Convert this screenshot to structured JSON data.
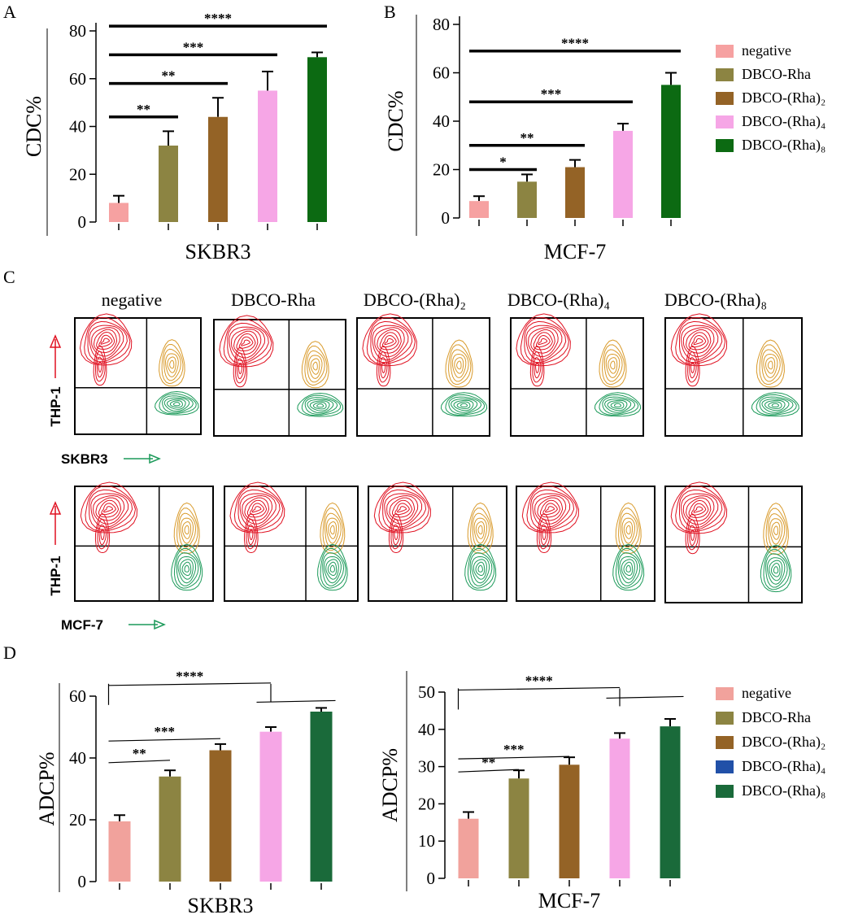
{
  "panels": {
    "A": "A",
    "B": "B",
    "C": "C",
    "D": "D"
  },
  "colors": {
    "negative": "#f6a1a1",
    "negative_d": "#f1a29c",
    "rha1": "#8c8442",
    "rha2": "#946326",
    "rha4": "#f6a6e6",
    "rha4_legend_d": "#2150a8",
    "rha8": "#0c6a12",
    "rha8_d": "#1a6a3a",
    "flow_red": "#e01020",
    "flow_orange": "#d99a2a",
    "flow_green": "#1c9a5a"
  },
  "legend_top": {
    "items": [
      "negative",
      "DBCO-Rha",
      "DBCO-(Rha)₂",
      "DBCO-(Rha)₄",
      "DBCO-(Rha)₈"
    ],
    "color_keys": [
      "negative",
      "rha1",
      "rha2",
      "rha4",
      "rha8"
    ]
  },
  "legend_bottom": {
    "items": [
      "negative",
      "DBCO-Rha",
      "DBCO-(Rha)₂",
      "DBCO-(Rha)₄",
      "DBCO-(Rha)₈"
    ],
    "color_keys": [
      "negative_d",
      "rha1",
      "rha2",
      "rha4_legend_d",
      "rha8_d"
    ]
  },
  "chart_data": [
    {
      "id": "A",
      "type": "bar",
      "xlabel": "SKBR3",
      "ylabel": "CDC%",
      "ylim": [
        0,
        80
      ],
      "yticks": [
        0,
        20,
        40,
        60,
        80
      ],
      "categories": [
        "negative",
        "DBCO-Rha",
        "DBCO-(Rha)₂",
        "DBCO-(Rha)₄",
        "DBCO-(Rha)₈"
      ],
      "values": [
        8,
        32,
        44,
        55,
        69
      ],
      "errors": [
        3,
        6,
        8,
        8,
        2
      ],
      "color_keys": [
        "negative",
        "rha1",
        "rha2",
        "rha4",
        "rha8"
      ],
      "significance": [
        {
          "from": 0,
          "to": 1,
          "label": "**",
          "y": 44
        },
        {
          "from": 0,
          "to": 2,
          "label": "**",
          "y": 58
        },
        {
          "from": 0,
          "to": 3,
          "label": "***",
          "y": 70
        },
        {
          "from": 0,
          "to": 4,
          "label": "****",
          "y": 82
        }
      ]
    },
    {
      "id": "B",
      "type": "bar",
      "xlabel": "MCF-7",
      "ylabel": "CDC%",
      "ylim": [
        0,
        80
      ],
      "yticks": [
        0,
        20,
        40,
        60,
        80
      ],
      "categories": [
        "negative",
        "DBCO-Rha",
        "DBCO-(Rha)₂",
        "DBCO-(Rha)₄",
        "DBCO-(Rha)₈"
      ],
      "values": [
        7,
        15,
        21,
        36,
        55
      ],
      "errors": [
        2,
        3,
        3,
        3,
        5
      ],
      "color_keys": [
        "negative",
        "rha1",
        "rha2",
        "rha4",
        "rha8"
      ],
      "significance": [
        {
          "from": 0,
          "to": 1,
          "label": "*",
          "y": 20
        },
        {
          "from": 0,
          "to": 2,
          "label": "**",
          "y": 30
        },
        {
          "from": 0,
          "to": 3,
          "label": "***",
          "y": 48
        },
        {
          "from": 0,
          "to": 4,
          "label": "****",
          "y": 69
        }
      ]
    },
    {
      "id": "D1",
      "type": "bar",
      "xlabel": "SKBR3",
      "ylabel": "ADCP%",
      "ylim": [
        0,
        60
      ],
      "yticks": [
        0,
        20,
        40,
        60
      ],
      "categories": [
        "negative",
        "DBCO-Rha",
        "DBCO-(Rha)₂",
        "DBCO-(Rha)₄",
        "DBCO-(Rha)₈"
      ],
      "values": [
        19.5,
        34,
        42.5,
        48.5,
        55
      ],
      "errors": [
        2,
        2,
        2,
        1.5,
        1.2
      ],
      "color_keys": [
        "negative_d",
        "rha1",
        "rha2",
        "rha4",
        "rha8_d"
      ],
      "significance": [
        {
          "from": 0,
          "to": 1,
          "label": "**",
          "y": 39
        },
        {
          "from": 0,
          "to": 2,
          "label": "***",
          "y": 46
        },
        {
          "from": 0,
          "to": 3,
          "label": "****",
          "y": 64
        }
      ]
    },
    {
      "id": "D2",
      "type": "bar",
      "xlabel": "MCF-7",
      "ylabel": "ADCP%",
      "ylim": [
        0,
        50
      ],
      "yticks": [
        0,
        10,
        20,
        30,
        40,
        50
      ],
      "categories": [
        "negative",
        "DBCO-Rha",
        "DBCO-(Rha)₂",
        "DBCO-(Rha)₄",
        "DBCO-(Rha)₈"
      ],
      "values": [
        16,
        26.8,
        30.5,
        37.5,
        40.8
      ],
      "errors": [
        1.8,
        2.2,
        2,
        1.5,
        2
      ],
      "color_keys": [
        "negative_d",
        "rha1",
        "rha2",
        "rha4",
        "rha8_d"
      ],
      "significance": [
        {
          "from": 0,
          "to": 1,
          "label": "**",
          "y": 29
        },
        {
          "from": 0,
          "to": 2,
          "label": "***",
          "y": 32.5
        },
        {
          "from": 0,
          "to": 3,
          "label": "****",
          "y": 51
        }
      ]
    }
  ],
  "flow": {
    "titles": [
      "negative",
      "DBCO-Rha",
      "DBCO-(Rha)₂",
      "DBCO-(Rha)₄",
      "DBCO-(Rha)₈"
    ],
    "rows": [
      {
        "cell_line": "SKBR3",
        "y_axis": "THP-1"
      },
      {
        "cell_line": "MCF-7",
        "y_axis": "THP-1"
      }
    ]
  }
}
